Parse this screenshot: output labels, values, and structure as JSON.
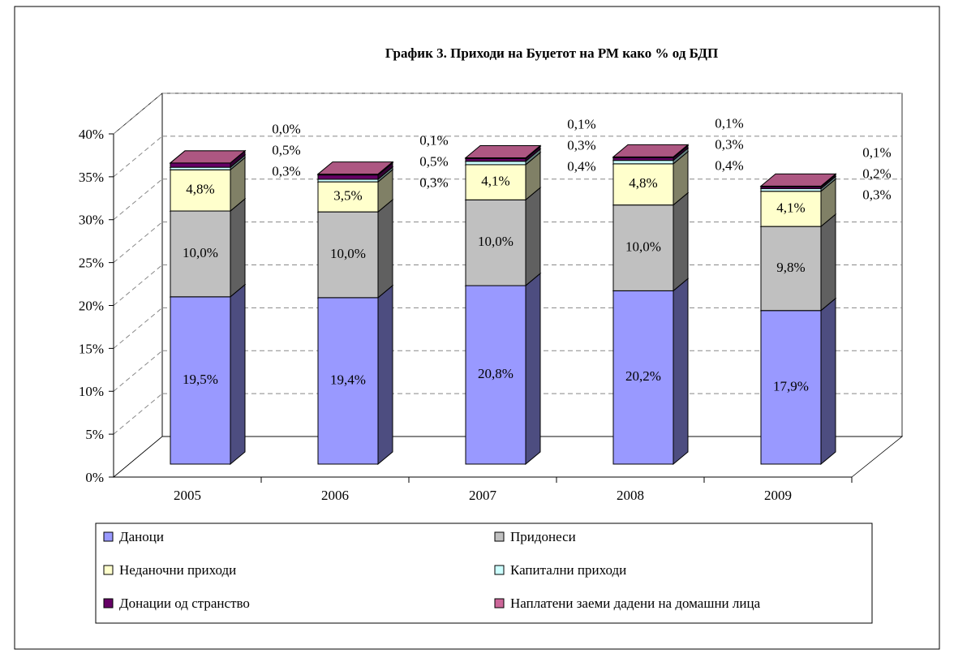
{
  "chart_data": {
    "type": "bar3d_stacked",
    "title": "График 3. Приходи на Буџетот на РМ како % од БДП",
    "categories": [
      "2005",
      "2006",
      "2007",
      "2008",
      "2009"
    ],
    "series": [
      {
        "name": "Даноци",
        "color": "#9999ff",
        "values": [
          19.5,
          19.4,
          20.8,
          20.2,
          17.9
        ],
        "value_labels": [
          "19,5%",
          "19,4%",
          "20,8%",
          "20,2%",
          "17,9%"
        ]
      },
      {
        "name": "Придонеси",
        "color": "#c0c0c0",
        "values": [
          10.0,
          10.0,
          10.0,
          10.0,
          9.8
        ],
        "value_labels": [
          "10,0%",
          "10,0%",
          "10,0%",
          "10,0%",
          "9,8%"
        ]
      },
      {
        "name": "Неданочни приходи",
        "color": "#ffffcc",
        "values": [
          4.8,
          3.5,
          4.1,
          4.8,
          4.1
        ],
        "value_labels": [
          "4,8%",
          "3,5%",
          "4,1%",
          "4,8%",
          "4,1%"
        ]
      },
      {
        "name": "Капитални приходи",
        "color": "#ccffff",
        "values": [
          0.3,
          0.3,
          0.4,
          0.4,
          0.3
        ],
        "value_labels": [
          "0,3%",
          "0,3%",
          "0,4%",
          "0,4%",
          "0,3%"
        ]
      },
      {
        "name": "Донации од странство",
        "color": "#660066",
        "values": [
          0.5,
          0.5,
          0.3,
          0.3,
          0.2
        ],
        "value_labels": [
          "0,5%",
          "0,5%",
          "0,3%",
          "0,3%",
          "0,2%"
        ]
      },
      {
        "name": "Наплатени заеми дадени на домашни лица",
        "color": "#cc6699",
        "values": [
          0.0,
          0.1,
          0.1,
          0.1,
          0.1
        ],
        "value_labels": [
          "0,0%",
          "0,1%",
          "0,1%",
          "0,1%",
          "0,1%"
        ]
      }
    ],
    "ylim": [
      0,
      40
    ],
    "yticks": [
      {
        "value": 0,
        "label": "0%"
      },
      {
        "value": 5,
        "label": "5%"
      },
      {
        "value": 10,
        "label": "10%"
      },
      {
        "value": 15,
        "label": "15%"
      },
      {
        "value": 20,
        "label": "20%"
      },
      {
        "value": 25,
        "label": "25%"
      },
      {
        "value": 30,
        "label": "30%"
      },
      {
        "value": 35,
        "label": "35%"
      },
      {
        "value": 40,
        "label": "40%"
      }
    ],
    "grid": true,
    "legend": "bottom"
  }
}
